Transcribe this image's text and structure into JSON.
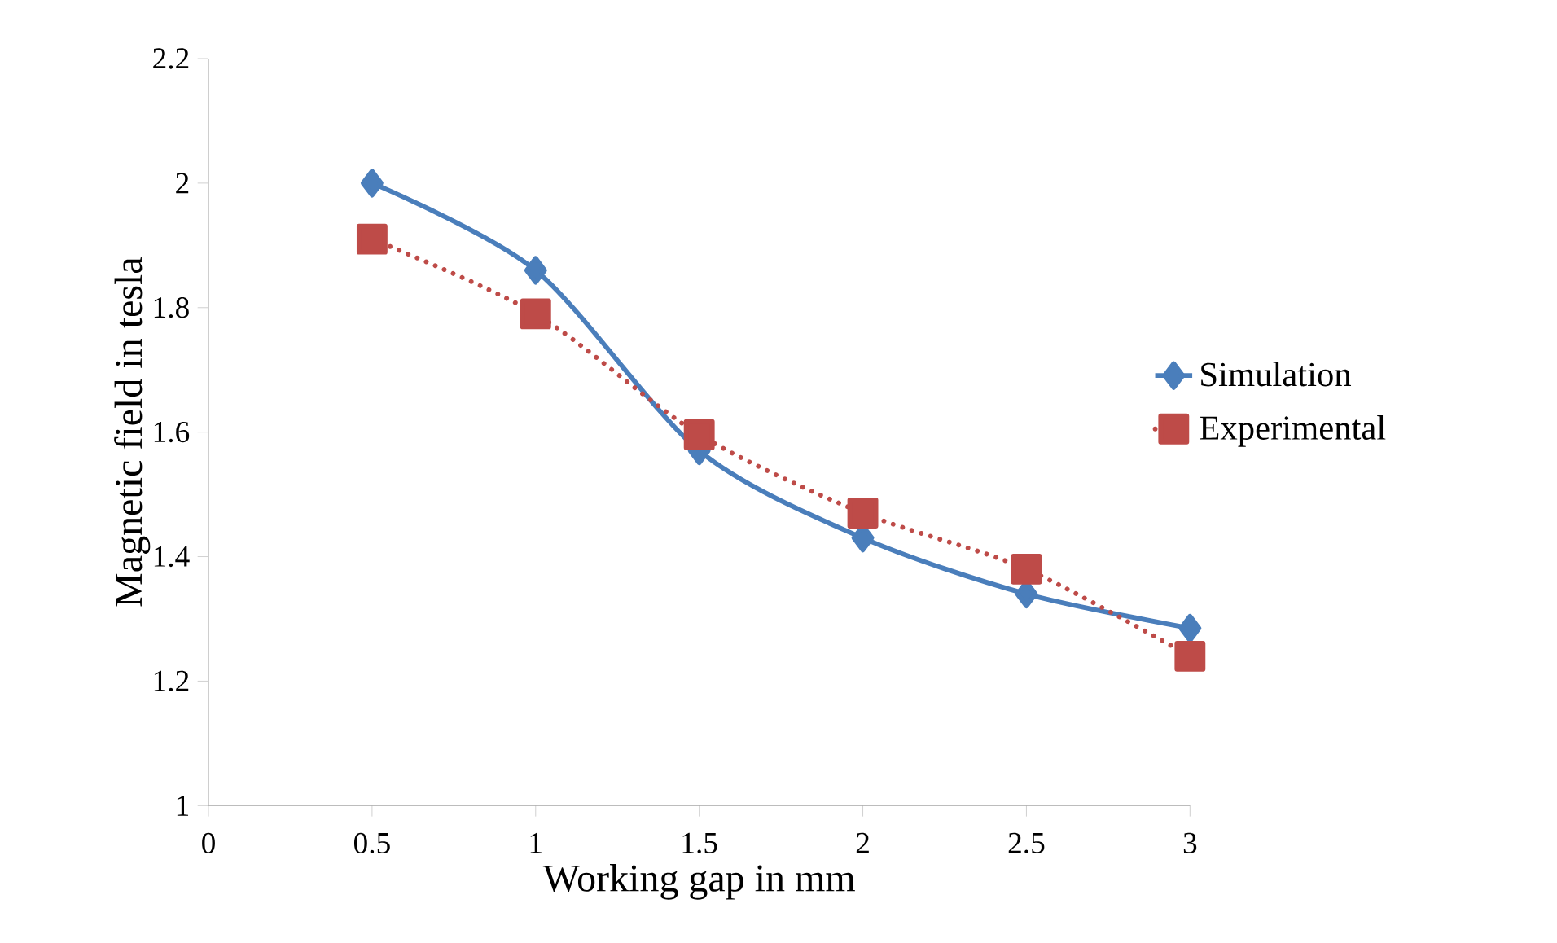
{
  "chart_data": {
    "type": "line",
    "xlabel": "Working gap in mm",
    "ylabel": "Magnetic field in tesla",
    "x": [
      0.5,
      1,
      1.5,
      2,
      2.5,
      3
    ],
    "series": [
      {
        "name": "Simulation",
        "color": "#4a7ebb",
        "marker": "diamond",
        "line_style": "solid",
        "values": [
          2.0,
          1.86,
          1.57,
          1.43,
          1.34,
          1.285
        ]
      },
      {
        "name": "Experimental",
        "color": "#be4b48",
        "marker": "square",
        "line_style": "dotted",
        "values": [
          1.91,
          1.79,
          1.596,
          1.47,
          1.38,
          1.24
        ]
      }
    ],
    "xlim": [
      0,
      3
    ],
    "ylim": [
      1,
      2.2
    ],
    "xticks": [
      0,
      0.5,
      1,
      1.5,
      2,
      2.5,
      3
    ],
    "yticks": [
      1,
      1.2,
      1.4,
      1.6,
      1.8,
      2,
      2.2
    ],
    "grid": false,
    "legend": "right"
  }
}
